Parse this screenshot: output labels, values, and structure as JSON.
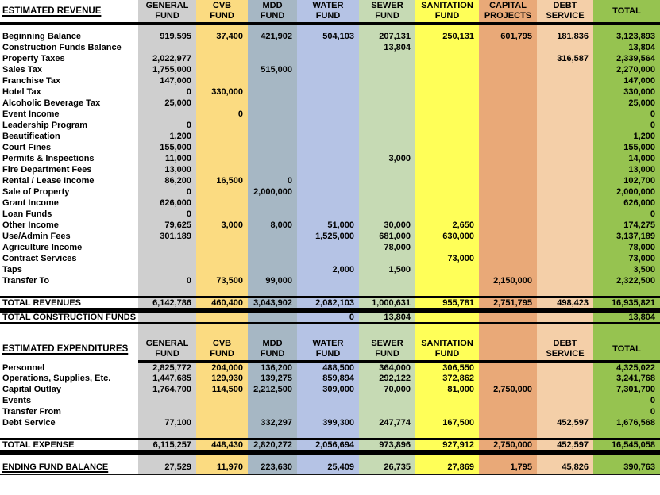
{
  "table": {
    "fund_colors": [
      "#CFCFCF",
      "#FBDB81",
      "#A6B7C4",
      "#B5C3E5",
      "#C6DAB4",
      "#FFFF58",
      "#E9A978",
      "#F4CFA8",
      "#96C350"
    ],
    "revenue": {
      "title": "ESTIMATED REVENUE",
      "columns": [
        [
          "GENERAL",
          "FUND"
        ],
        [
          "CVB",
          "FUND"
        ],
        [
          "MDD",
          "FUND"
        ],
        [
          "WATER",
          "FUND"
        ],
        [
          "SEWER",
          "FUND"
        ],
        [
          "SANITATION",
          "FUND"
        ],
        [
          "CAPITAL",
          "PROJECTS"
        ],
        [
          "DEBT",
          "SERVICE"
        ],
        [
          "TOTAL",
          ""
        ]
      ],
      "rows": [
        {
          "label": "Beginning Balance",
          "values": [
            "919,595",
            "37,400",
            "421,902",
            "504,103",
            "207,131",
            "250,131",
            "601,795",
            "181,836",
            "3,123,893"
          ]
        },
        {
          "label": "Construction Funds Balance",
          "values": [
            "",
            "",
            "",
            "",
            "13,804",
            "",
            "",
            "",
            "13,804"
          ]
        },
        {
          "label": "Property Taxes",
          "values": [
            "2,022,977",
            "",
            "",
            "",
            "",
            "",
            "",
            "316,587",
            "2,339,564"
          ]
        },
        {
          "label": "Sales Tax",
          "values": [
            "1,755,000",
            "",
            "515,000",
            "",
            "",
            "",
            "",
            "",
            "2,270,000"
          ]
        },
        {
          "label": "Franchise Tax",
          "values": [
            "147,000",
            "",
            "",
            "",
            "",
            "",
            "",
            "",
            "147,000"
          ]
        },
        {
          "label": "Hotel Tax",
          "values": [
            "0",
            "330,000",
            "",
            "",
            "",
            "",
            "",
            "",
            "330,000"
          ]
        },
        {
          "label": "Alcoholic Beverage Tax",
          "values": [
            "25,000",
            "",
            "",
            "",
            "",
            "",
            "",
            "",
            "25,000"
          ]
        },
        {
          "label": "Event Income",
          "values": [
            "",
            "0",
            "",
            "",
            "",
            "",
            "",
            "",
            "0"
          ]
        },
        {
          "label": "Leadership Program",
          "values": [
            "0",
            "",
            "",
            "",
            "",
            "",
            "",
            "",
            "0"
          ]
        },
        {
          "label": "Beautification",
          "values": [
            "1,200",
            "",
            "",
            "",
            "",
            "",
            "",
            "",
            "1,200"
          ]
        },
        {
          "label": "Court Fines",
          "values": [
            "155,000",
            "",
            "",
            "",
            "",
            "",
            "",
            "",
            "155,000"
          ]
        },
        {
          "label": "Permits & Inspections",
          "values": [
            "11,000",
            "",
            "",
            "",
            "3,000",
            "",
            "",
            "",
            "14,000"
          ]
        },
        {
          "label": "Fire Department Fees",
          "values": [
            "13,000",
            "",
            "",
            "",
            "",
            "",
            "",
            "",
            "13,000"
          ]
        },
        {
          "label": "Rental / Lease Income",
          "values": [
            "86,200",
            "16,500",
            "0",
            "",
            "",
            "",
            "",
            "",
            "102,700"
          ]
        },
        {
          "label": "Sale of Property",
          "values": [
            "0",
            "",
            "2,000,000",
            "",
            "",
            "",
            "",
            "",
            "2,000,000"
          ]
        },
        {
          "label": "Grant Income",
          "values": [
            "626,000",
            "",
            "",
            "",
            "",
            "",
            "",
            "",
            "626,000"
          ]
        },
        {
          "label": "Loan Funds",
          "values": [
            "0",
            "",
            "",
            "",
            "",
            "",
            "",
            "",
            "0"
          ]
        },
        {
          "label": "Other Income",
          "values": [
            "79,625",
            "3,000",
            "8,000",
            "51,000",
            "30,000",
            "2,650",
            "",
            "",
            "174,275"
          ]
        },
        {
          "label": "Use/Admin Fees",
          "values": [
            "301,189",
            "",
            "",
            "1,525,000",
            "681,000",
            "630,000",
            "",
            "",
            "3,137,189"
          ]
        },
        {
          "label": "Agriculture Income",
          "values": [
            "",
            "",
            "",
            "",
            "78,000",
            "",
            "",
            "",
            "78,000"
          ]
        },
        {
          "label": "Contract Services",
          "values": [
            "",
            "",
            "",
            "",
            "",
            "73,000",
            "",
            "",
            "73,000"
          ]
        },
        {
          "label": "Taps",
          "values": [
            "",
            "",
            "",
            "2,000",
            "1,500",
            "",
            "",
            "",
            "3,500"
          ]
        },
        {
          "label": "Transfer To",
          "values": [
            "0",
            "73,500",
            "99,000",
            "",
            "",
            "",
            "2,150,000",
            "",
            "2,322,500"
          ]
        }
      ],
      "total_row": {
        "label": "TOTAL REVENUES",
        "values": [
          "6,142,786",
          "460,400",
          "3,043,902",
          "2,082,103",
          "1,000,631",
          "955,781",
          "2,751,795",
          "498,423",
          "16,935,821"
        ]
      },
      "construction_row": {
        "label": "TOTAL CONSTRUCTION FUNDS",
        "values": [
          "",
          "",
          "",
          "0",
          "13,804",
          "",
          "",
          "",
          "13,804"
        ]
      }
    },
    "expenditures": {
      "title": "ESTIMATED EXPENDITURES",
      "columns": [
        [
          "GENERAL",
          "FUND"
        ],
        [
          "CVB",
          "FUND"
        ],
        [
          "MDD",
          "FUND"
        ],
        [
          "WATER",
          "FUND"
        ],
        [
          "SEWER",
          "FUND"
        ],
        [
          "SANITATION",
          "FUND"
        ],
        [
          "",
          ""
        ],
        [
          "DEBT",
          "SERVICE"
        ],
        [
          "TOTAL",
          ""
        ]
      ],
      "rows": [
        {
          "label": "Personnel",
          "values": [
            "2,825,772",
            "204,000",
            "136,200",
            "488,500",
            "364,000",
            "306,550",
            "",
            "",
            "4,325,022"
          ]
        },
        {
          "label": "Operations, Supplies, Etc.",
          "values": [
            "1,447,685",
            "129,930",
            "139,275",
            "859,894",
            "292,122",
            "372,862",
            "",
            "",
            "3,241,768"
          ]
        },
        {
          "label": "Capital Outlay",
          "values": [
            "1,764,700",
            "114,500",
            "2,212,500",
            "309,000",
            "70,000",
            "81,000",
            "2,750,000",
            "",
            "7,301,700"
          ]
        },
        {
          "label": "Events",
          "values": [
            "",
            "",
            "",
            "",
            "",
            "",
            "",
            "",
            "0"
          ]
        },
        {
          "label": "Transfer From",
          "values": [
            "",
            "",
            "",
            "",
            "",
            "",
            "",
            "",
            "0"
          ]
        },
        {
          "label": "Debt Service",
          "values": [
            "77,100",
            "",
            "332,297",
            "399,300",
            "247,774",
            "167,500",
            "",
            "452,597",
            "1,676,568"
          ]
        }
      ],
      "total_row": {
        "label": "TOTAL EXPENSE",
        "values": [
          "6,115,257",
          "448,430",
          "2,820,272",
          "2,056,694",
          "973,896",
          "927,912",
          "2,750,000",
          "452,597",
          "16,545,058"
        ]
      },
      "ending_row": {
        "label": "ENDING FUND BALANCE",
        "values": [
          "27,529",
          "11,970",
          "223,630",
          "25,409",
          "26,735",
          "27,869",
          "1,795",
          "45,826",
          "390,763"
        ]
      }
    }
  }
}
